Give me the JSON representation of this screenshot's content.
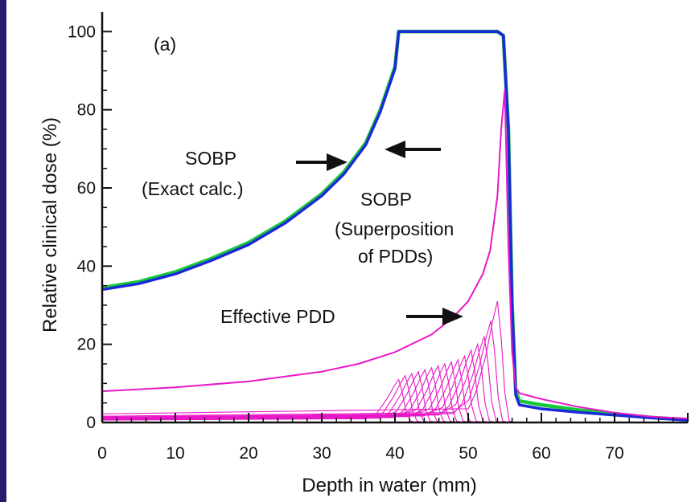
{
  "chart_data": {
    "type": "line",
    "panel_label": "(a)",
    "xlabel": "Depth in water (mm)",
    "ylabel": "Relative clinical dose (%)",
    "xlim": [
      0,
      80
    ],
    "ylim": [
      0,
      105
    ],
    "x_ticks": [
      0,
      10,
      20,
      30,
      40,
      50,
      60,
      70
    ],
    "y_ticks": [
      0,
      20,
      40,
      60,
      80,
      100
    ],
    "grid": false,
    "annotations": [
      {
        "id": "sobp-exact",
        "lines": [
          "SOBP",
          "(Exact calc.)"
        ]
      },
      {
        "id": "sobp-super",
        "lines": [
          "SOBP",
          "(Superposition",
          "of PDDs)"
        ]
      },
      {
        "id": "eff-pdd",
        "lines": [
          "Effective PDD"
        ]
      }
    ],
    "series": [
      {
        "color": "#18c83c",
        "x": [
          0,
          5,
          10,
          15,
          20,
          25,
          30,
          33,
          36,
          38,
          40,
          40.5,
          45,
          50,
          54,
          54.8,
          55.5,
          56,
          56.5,
          57,
          60,
          65,
          70,
          75,
          80
        ],
        "y": [
          34.5,
          36,
          38.5,
          42,
          46,
          51.5,
          58.5,
          64,
          71.5,
          80,
          91,
          100,
          100,
          100,
          100,
          99,
          75,
          30,
          8,
          5.5,
          4.5,
          3.2,
          2.2,
          1.3,
          0.7
        ]
      },
      {
        "color": "#1a2ad8",
        "x": [
          0,
          5,
          10,
          15,
          20,
          25,
          30,
          33,
          36,
          38,
          40,
          40.5,
          45,
          50,
          54,
          54.8,
          55.5,
          56,
          56.5,
          57,
          60,
          65,
          70,
          75,
          80
        ],
        "y": [
          34,
          35.5,
          38,
          41.5,
          45.5,
          51,
          58,
          63.5,
          71,
          79.5,
          90.5,
          100,
          100,
          100,
          100,
          99,
          75,
          30,
          7,
          4.5,
          3.5,
          2.6,
          1.9,
          1.2,
          0.6
        ]
      },
      {
        "color": "#e818c8",
        "x": [
          0,
          10,
          20,
          30,
          35,
          40,
          45,
          48,
          50,
          52,
          53,
          54,
          54.5,
          55,
          55.5,
          56,
          56.5,
          57,
          60,
          65,
          70,
          75,
          80
        ],
        "y": [
          8,
          9,
          10.5,
          13,
          15,
          18,
          22.5,
          27,
          31,
          38,
          44,
          58,
          75,
          85,
          45,
          18,
          9,
          7.5,
          6,
          4,
          2.5,
          1.5,
          1
        ]
      }
    ],
    "individual_pdds": {
      "color": "#e818c8",
      "count": 16,
      "peak_positions": [
        40.5,
        41.4,
        42.3,
        43.2,
        44.1,
        45.0,
        45.9,
        46.8,
        47.7,
        48.6,
        49.5,
        50.4,
        51.3,
        52.2,
        53.1,
        54.0
      ],
      "peak_values": [
        11,
        12,
        12.5,
        13,
        13.5,
        14,
        14.5,
        15,
        15.5,
        16,
        17,
        18.5,
        20,
        22,
        26,
        31
      ],
      "entrance_values": [
        0.6,
        0.65,
        0.7,
        0.75,
        0.8,
        0.85,
        0.9,
        0.95,
        1.0,
        1.05,
        1.1,
        1.2,
        1.3,
        1.4,
        1.6,
        2.2
      ]
    }
  }
}
